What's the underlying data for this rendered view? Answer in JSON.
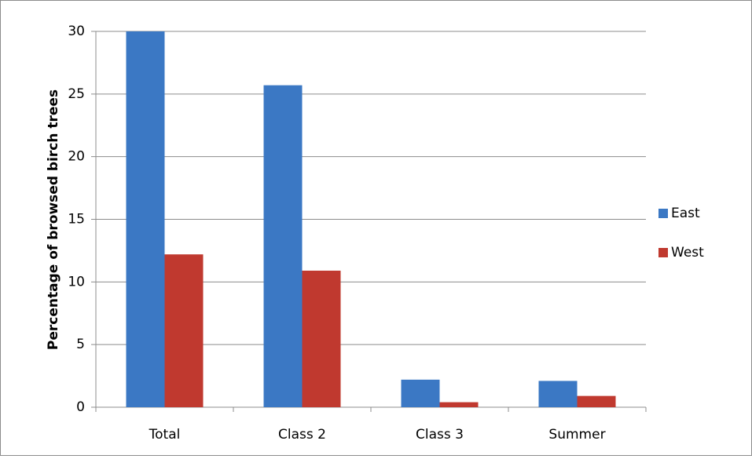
{
  "chart_data": {
    "type": "bar",
    "y_label": "Percentage of browsed birch trees",
    "categories": [
      "Total",
      "Class 2",
      "Class 3",
      "Summer"
    ],
    "series": [
      {
        "name": "East",
        "color": "#3b78c4",
        "values": [
          30,
          25.7,
          2.2,
          2.1
        ]
      },
      {
        "name": "West",
        "color": "#c0392f",
        "values": [
          12.2,
          10.9,
          0.4,
          0.9
        ]
      }
    ],
    "ylim": [
      0,
      30
    ],
    "yticks": [
      0,
      5,
      10,
      15,
      20,
      25,
      30
    ],
    "grid": true,
    "legend": "right"
  }
}
